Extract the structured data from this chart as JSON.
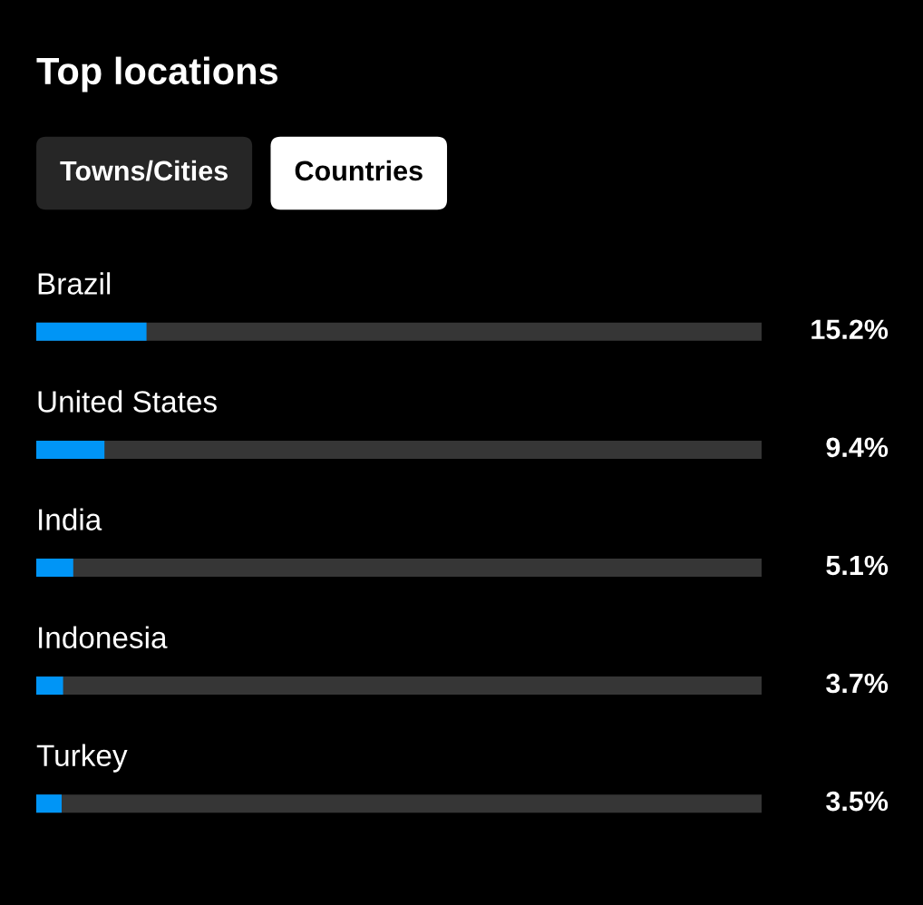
{
  "chart_data": {
    "type": "bar",
    "orientation": "horizontal",
    "title": "Top locations",
    "annotations": [
      "Towns/Cities",
      "Countries"
    ],
    "categories": [
      "Brazil",
      "United States",
      "India",
      "Indonesia",
      "Turkey"
    ],
    "values": [
      15.2,
      9.4,
      5.1,
      3.7,
      3.5
    ],
    "value_labels": [
      "15.2%",
      "9.4%",
      "5.1%",
      "3.7%",
      "3.5%"
    ],
    "color": "#0095f6",
    "xlim": [
      0,
      100
    ],
    "tick_labels": "y"
  }
}
